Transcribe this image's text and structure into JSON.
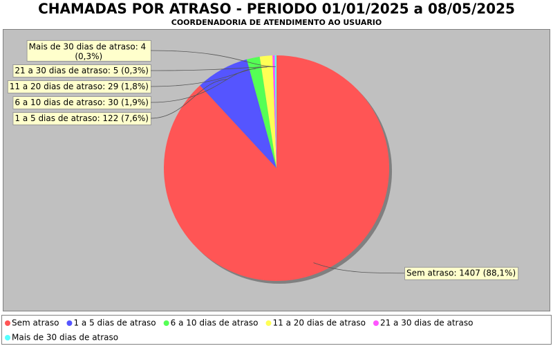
{
  "chart_data": {
    "type": "pie",
    "title": "CHAMADAS POR ATRASO - PERIODO 01/01/2025 a 08/05/2025",
    "subtitle": "COORDENADORIA DE ATENDIMENTO AO USUARIO",
    "categories": [
      "Sem atraso",
      "1 a 5 dias de atraso",
      "6 a 10 dias de atraso",
      "11 a 20 dias de atraso",
      "21 a 30 dias de atraso",
      "Mais de 30 dias de atraso"
    ],
    "values": [
      1407,
      122,
      30,
      29,
      5,
      4
    ],
    "value_labels": [
      "Sem atraso: 1407 (88,1%)",
      "1 a 5 dias de atraso: 122 (7,6%)",
      "6 a 10 dias de atraso: 30 (1,9%)",
      "11 a 20 dias de atraso: 29 (1,8%)",
      "21 a 30 dias de atraso: 5 (0,3%)",
      "Mais de 30 dias de atraso: 4 (0,3%)"
    ],
    "colors": [
      "#ff5555",
      "#5555ff",
      "#55ff55",
      "#ffff55",
      "#ff55ff",
      "#55ffff"
    ],
    "legend": "bottom"
  }
}
